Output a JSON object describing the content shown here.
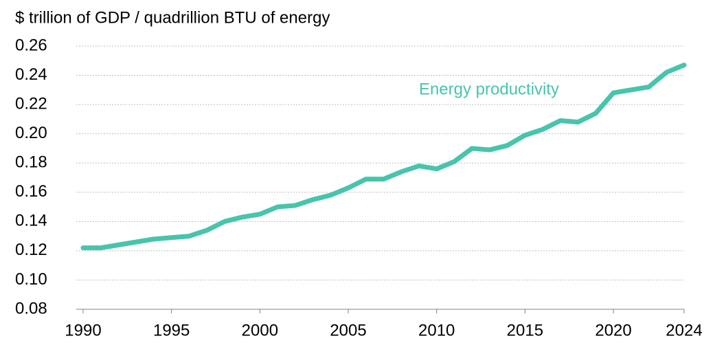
{
  "chart_data": {
    "type": "line",
    "title": "$ trillion of GDP / quadrillion BTU of energy",
    "x": [
      1990,
      1991,
      1992,
      1993,
      1994,
      1995,
      1996,
      1997,
      1998,
      1999,
      2000,
      2001,
      2002,
      2003,
      2004,
      2005,
      2006,
      2007,
      2008,
      2009,
      2010,
      2011,
      2012,
      2013,
      2014,
      2015,
      2016,
      2017,
      2018,
      2019,
      2020,
      2021,
      2022,
      2023,
      2024
    ],
    "series": [
      {
        "name": "Energy productivity",
        "color": "#48c4ac",
        "values": [
          0.122,
          0.122,
          0.124,
          0.126,
          0.128,
          0.129,
          0.13,
          0.134,
          0.14,
          0.143,
          0.145,
          0.15,
          0.151,
          0.155,
          0.158,
          0.163,
          0.169,
          0.169,
          0.174,
          0.178,
          0.176,
          0.181,
          0.19,
          0.189,
          0.192,
          0.199,
          0.203,
          0.209,
          0.208,
          0.214,
          0.228,
          0.23,
          0.232,
          0.242,
          0.247
        ]
      }
    ],
    "xlim": [
      1990,
      2024
    ],
    "xticks": [
      1990,
      1995,
      2000,
      2005,
      2010,
      2015,
      2020,
      2024
    ],
    "ylim": [
      0.08,
      0.26
    ],
    "yticks": [
      0.08,
      {
        "value": 0.1,
        "label": "0.10"
      },
      0.12,
      0.14,
      0.16,
      0.18,
      {
        "value": 0.2,
        "label": "0.20"
      },
      0.22,
      0.24,
      0.26
    ],
    "grid": true
  }
}
